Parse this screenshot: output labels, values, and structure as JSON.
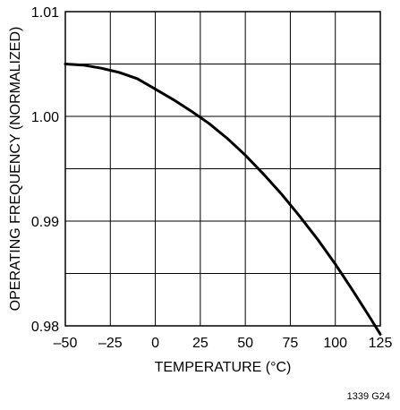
{
  "chart_data": {
    "type": "line",
    "title": "",
    "xlabel": "TEMPERATURE (°C)",
    "ylabel": "OPERATING FREQUENCY (NORMALIZED)",
    "xlim": [
      -50,
      125
    ],
    "ylim": [
      0.98,
      1.01
    ],
    "x_ticks": [
      -50,
      -25,
      0,
      25,
      50,
      75,
      100,
      125
    ],
    "y_ticks": [
      0.98,
      0.99,
      1.0,
      1.01
    ],
    "x_tick_labels": [
      "–50",
      "–25",
      "0",
      "25",
      "50",
      "75",
      "100",
      "125"
    ],
    "y_tick_labels": [
      "0.98",
      "0.99",
      "1.00",
      "1.01"
    ],
    "grid": true,
    "series": [
      {
        "x": [
          -50,
          -40,
          -30,
          -20,
          -10,
          0,
          10,
          20,
          25,
          30,
          40,
          50,
          60,
          70,
          80,
          90,
          100,
          110,
          120,
          125
        ],
        "values": [
          1.005,
          1.0049,
          1.0046,
          1.0042,
          1.0036,
          1.0026,
          1.0016,
          1.0005,
          0.9999,
          0.9993,
          0.9979,
          0.9963,
          0.9945,
          0.9926,
          0.9905,
          0.9883,
          0.9859,
          0.9833,
          0.9806,
          0.9792
        ]
      }
    ]
  },
  "figure_code": "1339 G24"
}
